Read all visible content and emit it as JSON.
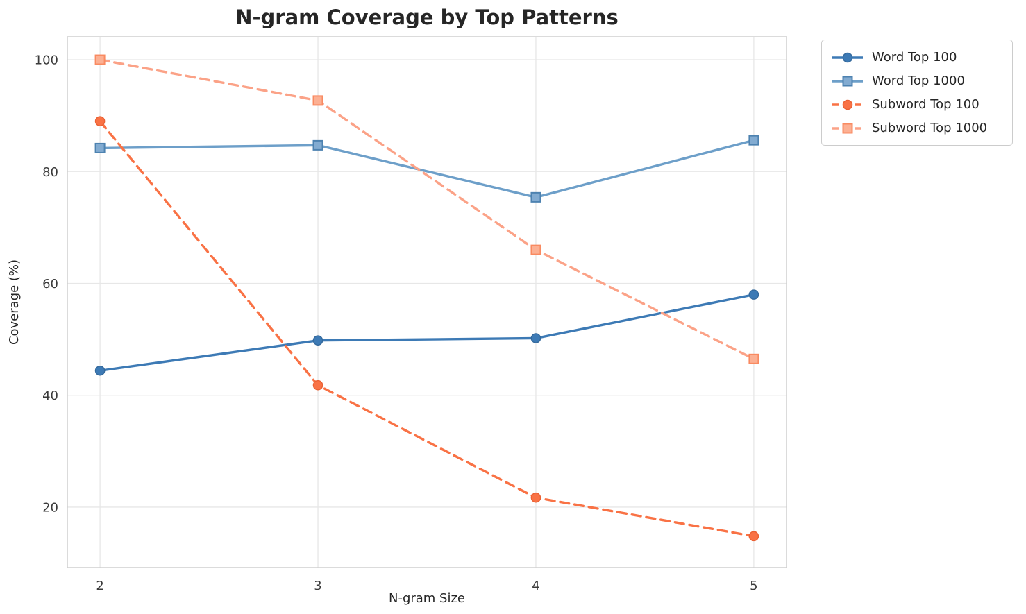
{
  "figure": {
    "background": "#ffffff"
  },
  "chart_data": {
    "type": "line",
    "title": "N-gram Coverage by Top Patterns",
    "xlabel": "N-gram Size",
    "ylabel": "Coverage (%)",
    "x": [
      2,
      3,
      4,
      5
    ],
    "xticks": [
      2,
      3,
      4,
      5
    ],
    "yticks": [
      20,
      40,
      60,
      80,
      100
    ],
    "xlim": [
      1.85,
      5.15
    ],
    "ylim": [
      9.2,
      104.1
    ],
    "grid": true,
    "legend_position": "outside-top-right",
    "series": [
      {
        "name": "Word Top 100",
        "values": [
          44.4,
          49.8,
          50.2,
          58.0
        ],
        "color": "#3d7ab5",
        "marker_fill": "#3d7ab5",
        "marker_edge": "#34699c",
        "line_style": "solid",
        "marker": "circle"
      },
      {
        "name": "Word Top 1000",
        "values": [
          84.2,
          84.7,
          75.4,
          85.6
        ],
        "color": "#6d9fc9",
        "marker_fill": "#82abd1",
        "marker_edge": "#4d82b0",
        "line_style": "solid",
        "marker": "square"
      },
      {
        "name": "Subword Top 100",
        "values": [
          89.0,
          41.8,
          21.7,
          14.8
        ],
        "color": "#f97245",
        "marker_fill": "#f97245",
        "marker_edge": "#ea6134",
        "line_style": "dashed",
        "marker": "circle"
      },
      {
        "name": "Subword Top 1000",
        "values": [
          100.0,
          92.7,
          66.0,
          46.5
        ],
        "color": "#fba287",
        "marker_fill": "#fcb093",
        "marker_edge": "#f98a61",
        "line_style": "dashed",
        "marker": "square"
      }
    ]
  }
}
